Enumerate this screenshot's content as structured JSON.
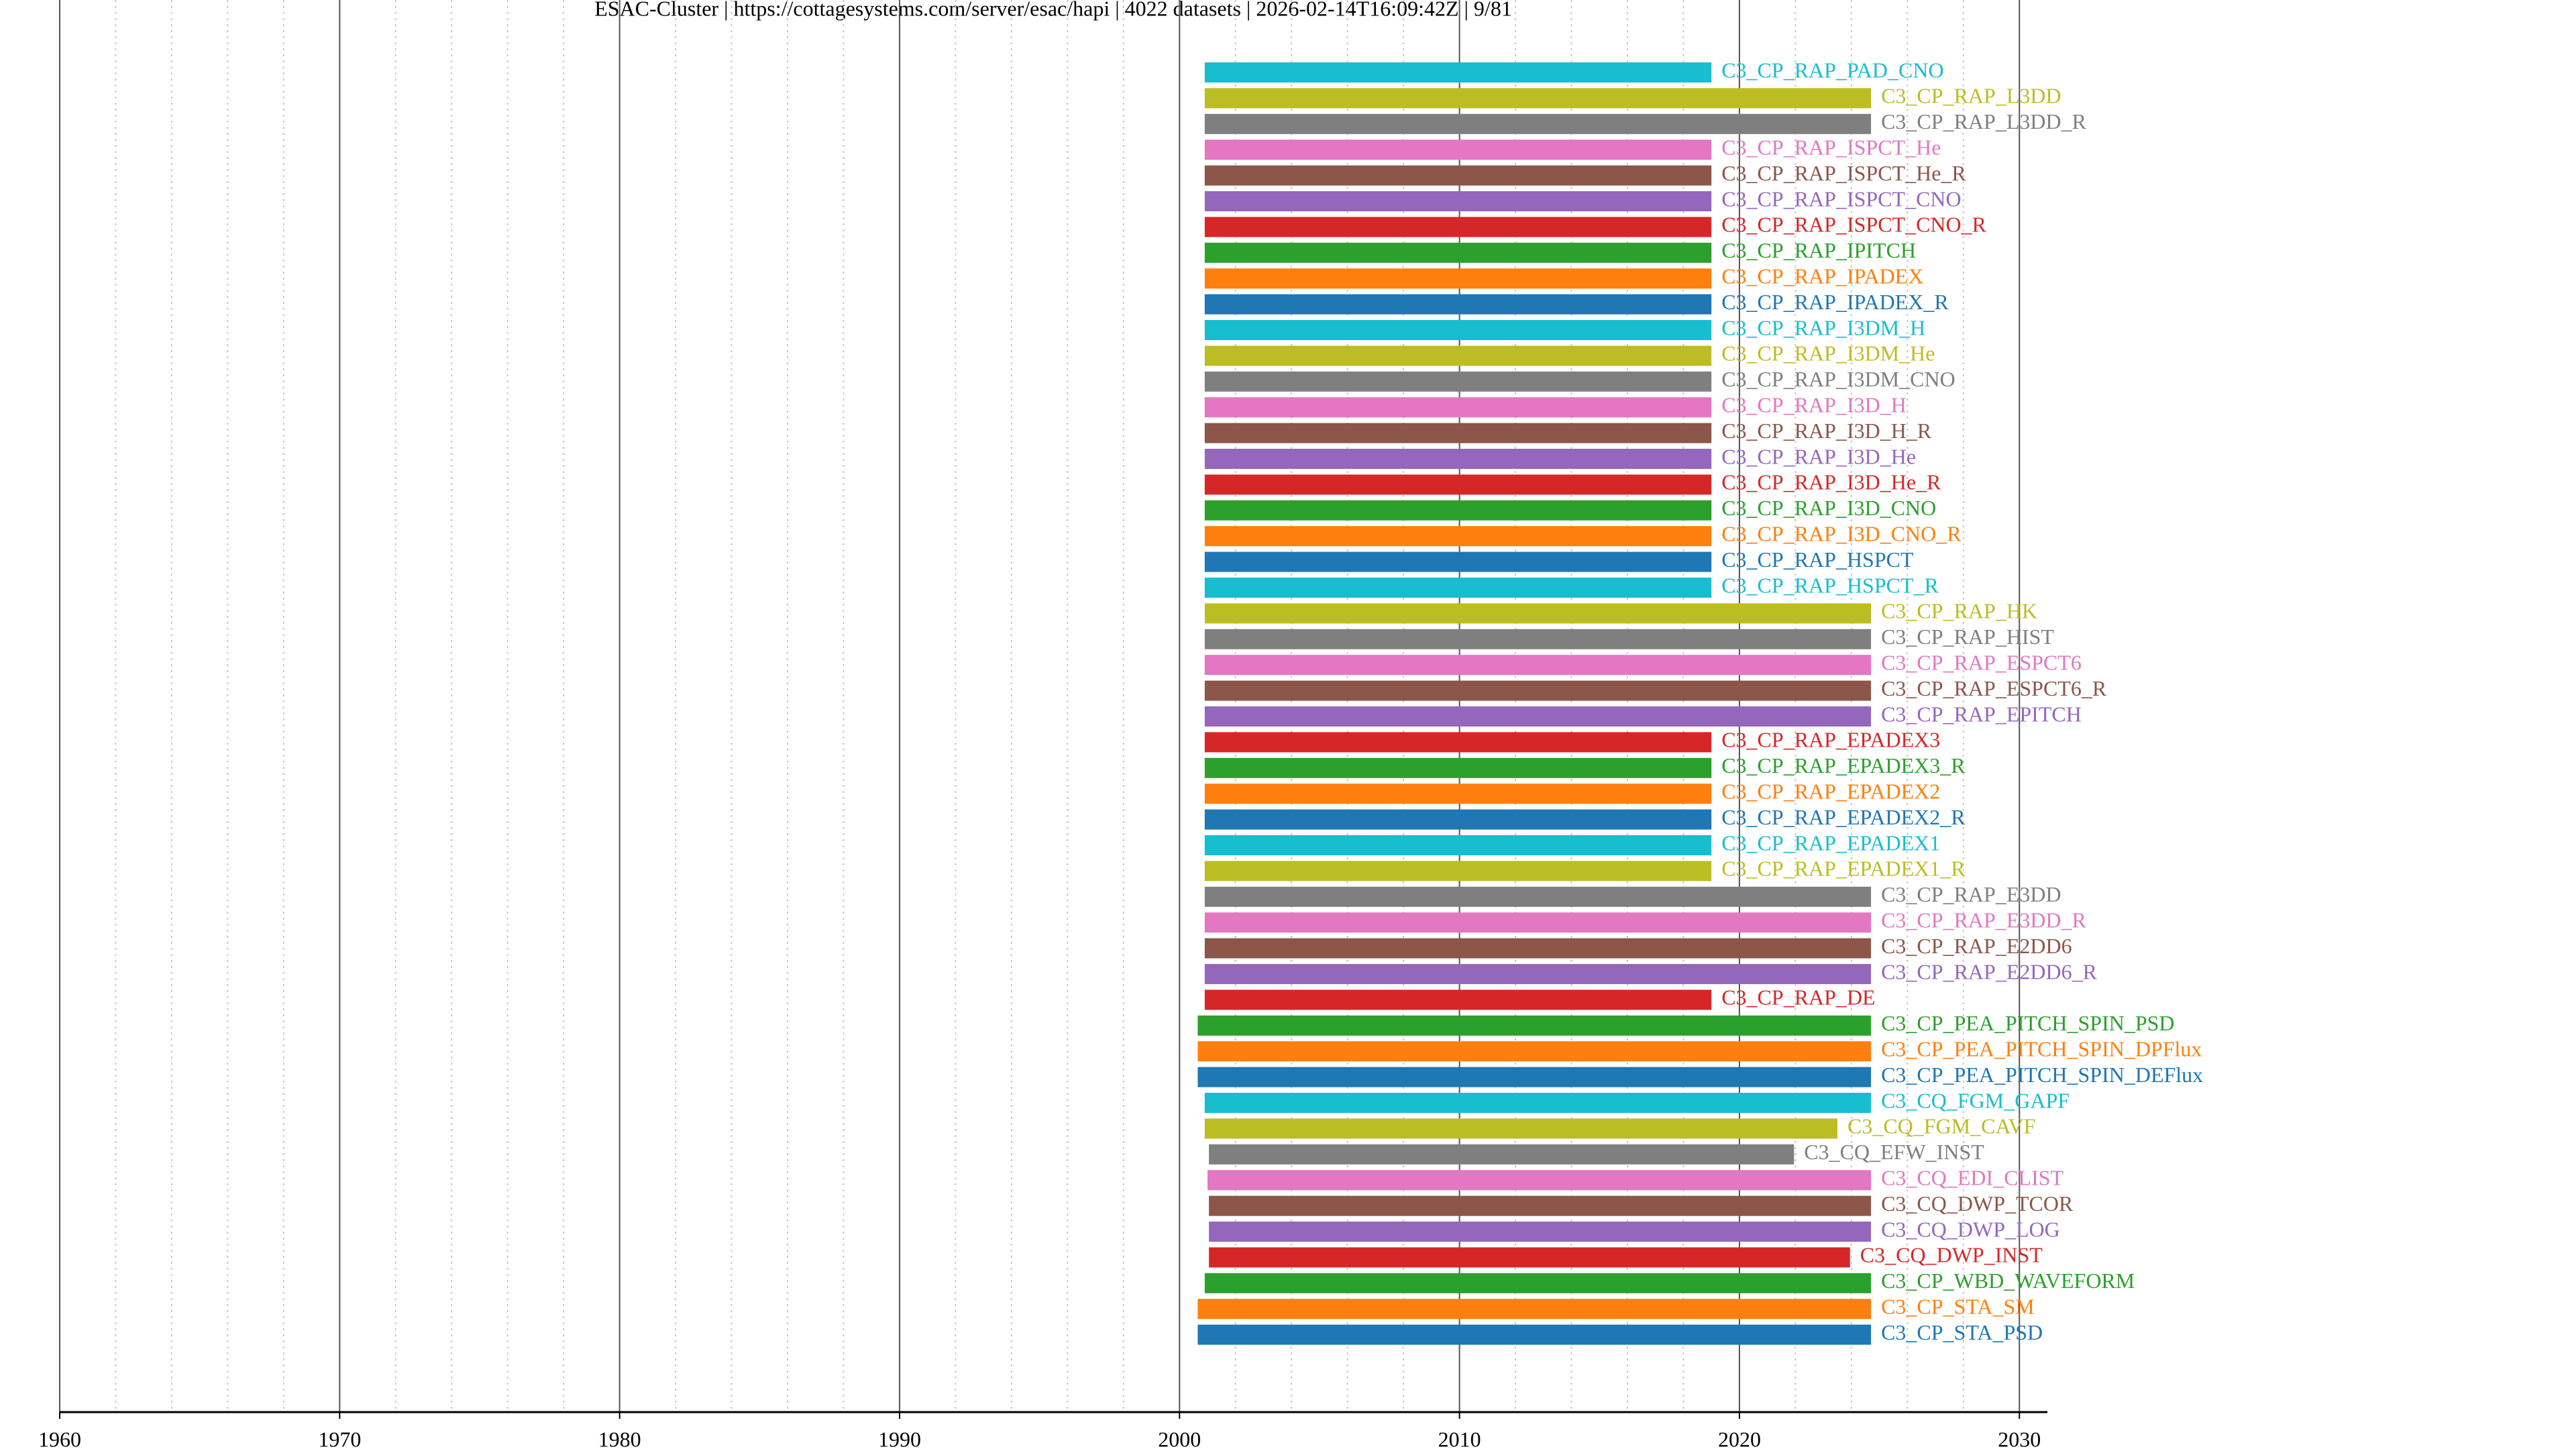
{
  "chart_data": {
    "type": "timeline",
    "title": "ESAC-Cluster | https://cottagesystems.com/server/esac/hapi | 4022 datasets | 2026-02-14T16:09:42Z | 9/81",
    "categories": [
      "C3_CP_RAP_PAD_CNO",
      "C3_CP_RAP_L3DD",
      "C3_CP_RAP_L3DD_R",
      "C3_CP_RAP_ISPCT_He",
      "C3_CP_RAP_ISPCT_He_R",
      "C3_CP_RAP_ISPCT_CNO",
      "C3_CP_RAP_ISPCT_CNO_R",
      "C3_CP_RAP_IPITCH",
      "C3_CP_RAP_IPADEX",
      "C3_CP_RAP_IPADEX_R",
      "C3_CP_RAP_I3DM_H",
      "C3_CP_RAP_I3DM_He",
      "C3_CP_RAP_I3DM_CNO",
      "C3_CP_RAP_I3D_H",
      "C3_CP_RAP_I3D_H_R",
      "C3_CP_RAP_I3D_He",
      "C3_CP_RAP_I3D_He_R",
      "C3_CP_RAP_I3D_CNO",
      "C3_CP_RAP_I3D_CNO_R",
      "C3_CP_RAP_HSPCT",
      "C3_CP_RAP_HSPCT_R",
      "C3_CP_RAP_HK",
      "C3_CP_RAP_HIST",
      "C3_CP_RAP_ESPCT6",
      "C3_CP_RAP_ESPCT6_R",
      "C3_CP_RAP_EPITCH",
      "C3_CP_RAP_EPADEX3",
      "C3_CP_RAP_EPADEX3_R",
      "C3_CP_RAP_EPADEX2",
      "C3_CP_RAP_EPADEX2_R",
      "C3_CP_RAP_EPADEX1",
      "C3_CP_RAP_EPADEX1_R",
      "C3_CP_RAP_E3DD",
      "C3_CP_RAP_E3DD_R",
      "C3_CP_RAP_E2DD6",
      "C3_CP_RAP_E2DD6_R",
      "C3_CP_RAP_DE",
      "C3_CP_PEA_PITCH_SPIN_PSD",
      "C3_CP_PEA_PITCH_SPIN_DPFlux",
      "C3_CP_PEA_PITCH_SPIN_DEFlux",
      "C3_CQ_FGM_GAPF",
      "C3_CQ_FGM_CAVF",
      "C3_CQ_EFW_INST",
      "C3_CQ_EDI_CLIST",
      "C3_CQ_DWP_TCOR",
      "C3_CQ_DWP_LOG",
      "C3_CQ_DWP_INST",
      "C3_CP_WBD_WAVEFORM",
      "C3_CP_STA_SM",
      "C3_CP_STA_PSD"
    ],
    "start": [
      2000.9,
      2000.9,
      2000.9,
      2000.9,
      2000.9,
      2000.9,
      2000.9,
      2000.9,
      2000.9,
      2000.9,
      2000.9,
      2000.9,
      2000.9,
      2000.9,
      2000.9,
      2000.9,
      2000.9,
      2000.9,
      2000.9,
      2000.9,
      2000.9,
      2000.9,
      2000.9,
      2000.9,
      2000.9,
      2000.9,
      2000.9,
      2000.9,
      2000.9,
      2000.9,
      2000.9,
      2000.9,
      2000.9,
      2000.9,
      2000.9,
      2000.9,
      2000.9,
      2000.65,
      2000.65,
      2000.65,
      2000.9,
      2000.9,
      2001.05,
      2001.0,
      2001.05,
      2001.05,
      2001.05,
      2000.9,
      2000.65,
      2000.65
    ],
    "end": [
      2019.0,
      2024.7,
      2024.7,
      2019.0,
      2019.0,
      2019.0,
      2019.0,
      2019.0,
      2019.0,
      2019.0,
      2019.0,
      2019.0,
      2019.0,
      2019.0,
      2019.0,
      2019.0,
      2019.0,
      2019.0,
      2019.0,
      2019.0,
      2019.0,
      2024.7,
      2024.7,
      2024.7,
      2024.7,
      2024.7,
      2019.0,
      2019.0,
      2019.0,
      2019.0,
      2019.0,
      2019.0,
      2024.7,
      2024.7,
      2024.7,
      2024.7,
      2019.0,
      2024.7,
      2024.7,
      2024.7,
      2024.7,
      2023.5,
      2021.95,
      2024.7,
      2024.7,
      2024.7,
      2023.95,
      2024.7,
      2024.7,
      2024.7
    ],
    "palette": [
      "#1f77b4",
      "#ff7f0e",
      "#2ca02c",
      "#d62728",
      "#9467bd",
      "#8c564b",
      "#e377c2",
      "#7f7f7f",
      "#bcbd22",
      "#17becf"
    ],
    "xlim": [
      1960,
      2031
    ],
    "xticks": [
      1960,
      1970,
      1980,
      1990,
      2000,
      2010,
      2020,
      2030
    ],
    "xticks_minor": [
      1962,
      1964,
      1966,
      1968,
      1972,
      1974,
      1976,
      1978,
      1982,
      1984,
      1986,
      1988,
      1992,
      1994,
      1996,
      1998,
      2002,
      2004,
      2006,
      2008,
      2012,
      2014,
      2016,
      2018,
      2022,
      2024,
      2026,
      2028
    ],
    "grid": true
  }
}
